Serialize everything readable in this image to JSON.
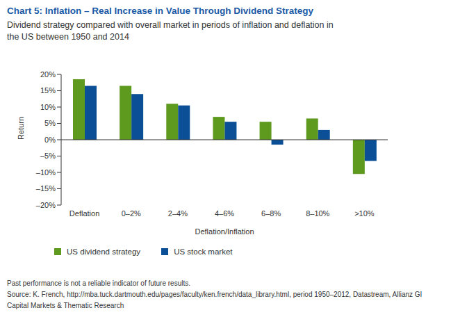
{
  "chart_data": {
    "type": "bar",
    "title": "Chart 5: Inflation – Real Increase in Value Through Dividend Strategy",
    "subtitle": "Dividend strategy compared with overall market in periods of inflation and deflation in the US between 1950 and 2014",
    "x_label": "Deflation/Inflation",
    "y_label": "Return",
    "categories": [
      "Deflation",
      "0–2%",
      "2–4%",
      "4–6%",
      "6–8%",
      "8–10%",
      ">10%"
    ],
    "series": [
      {
        "name": "US dividend strategy",
        "color": "#5e9a1e",
        "values": [
          18.5,
          16.5,
          11,
          7,
          5.5,
          6.5,
          -10.5
        ]
      },
      {
        "name": "US stock market",
        "color": "#0b4f96",
        "values": [
          16.5,
          14,
          10.5,
          5.5,
          -1.5,
          3,
          -6.5
        ]
      }
    ],
    "ylim": [
      -20,
      20
    ],
    "yticks": [
      {
        "value": 20,
        "label": "20%"
      },
      {
        "value": 15,
        "label": "15%"
      },
      {
        "value": 10,
        "label": "10%"
      },
      {
        "value": 5,
        "label": "5%"
      },
      {
        "value": 0,
        "label": "0%"
      },
      {
        "value": -5,
        "label": "–5%"
      },
      {
        "value": -10,
        "label": "–10%"
      },
      {
        "value": -15,
        "label": "–15%"
      },
      {
        "value": -20,
        "label": "–20%"
      }
    ],
    "grid": false,
    "notes": [
      "Past performance is not a reliable indicator of future results.",
      "Source: K. French, http://mba.tuck.dartmouth.edu/pages/faculty/ken.french/data_library.html, period 1950–2012, Datastream, Allianz GI Capital Markets & Thematic Research"
    ]
  }
}
